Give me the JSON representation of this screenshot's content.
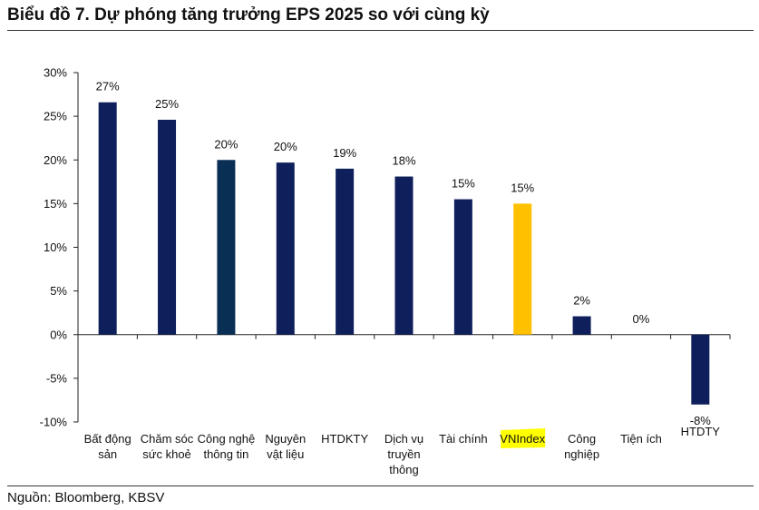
{
  "title": "Biểu đồ 7. Dự phóng tăng trưởng EPS 2025 so với cùng kỳ",
  "source": "Nguồn: Bloomberg, KBSV",
  "chart_data": {
    "type": "bar",
    "title": "Biểu đồ 7. Dự phóng tăng trưởng EPS 2025 so với cùng kỳ",
    "xlabel": "",
    "ylabel": "",
    "ylim": [
      -10,
      30
    ],
    "yticks": [
      30,
      25,
      20,
      15,
      10,
      5,
      0,
      -5,
      -10
    ],
    "ytick_labels": [
      "30%",
      "25%",
      "20%",
      "15%",
      "10%",
      "5%",
      "0%",
      "-5%",
      "-10%"
    ],
    "categories": [
      [
        "Bất động",
        "sản"
      ],
      [
        "Chăm sóc",
        "sức khoẻ"
      ],
      [
        "Công nghệ",
        "thông tin"
      ],
      [
        "Nguyên",
        "vật liệu"
      ],
      [
        "HTDKTY"
      ],
      [
        "Dịch vụ",
        "truyền",
        "thông"
      ],
      [
        "Tài chính"
      ],
      [
        "VNIndex"
      ],
      [
        "Công",
        "nghiệp"
      ],
      [
        "Tiện ích"
      ],
      [
        "HTDTY"
      ]
    ],
    "values": [
      26.6,
      24.6,
      20.0,
      19.7,
      19.0,
      18.1,
      15.5,
      15.0,
      2.1,
      0.0,
      -8.0
    ],
    "data_labels": [
      "27%",
      "25%",
      "20%",
      "20%",
      "19%",
      "18%",
      "15%",
      "15%",
      "2%",
      "0%",
      "-8%"
    ],
    "colors": [
      "#0e1f5b",
      "#0e1f5b",
      "#0a2f54",
      "#0e1f5b",
      "#0e1f5b",
      "#0e1f5b",
      "#0e1f5b",
      "#ffc000",
      "#0e1f5b",
      "#0e1f5b",
      "#0e1f5b"
    ],
    "highlight_category": "VNIndex",
    "highlight_color": "#ffff00",
    "grid": false,
    "legend": "none"
  }
}
